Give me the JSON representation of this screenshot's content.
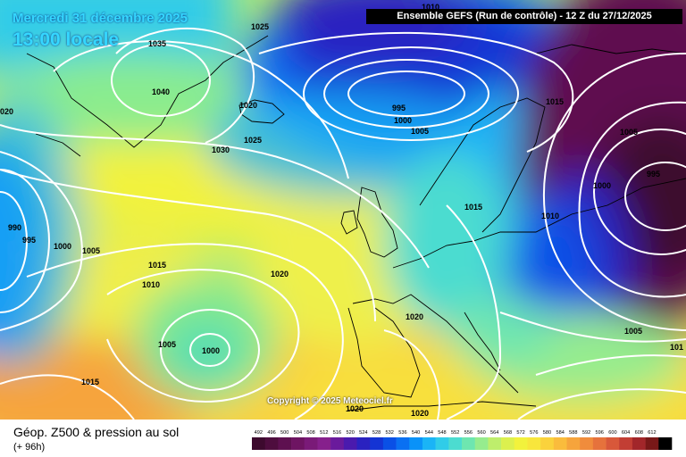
{
  "title": {
    "date": "Mercredi 31 décembre 2025",
    "time": "13:00 locale"
  },
  "run_banner": "Ensemble GEFS  (Run de contrôle)  -  12 Z du 27/12/2025",
  "copyright": "Copyright © 2025 Meteociel.fr",
  "footer": {
    "title": "Géop. Z500 & pression au sol",
    "subtitle": "(+ 96h)"
  },
  "colors": {
    "isobar": "#ffffff",
    "title_text": "#35d7ff",
    "coastline": "#000000"
  },
  "legend": {
    "ticks": [
      "492",
      "496",
      "500",
      "504",
      "508",
      "512",
      "516",
      "520",
      "524",
      "528",
      "532",
      "536",
      "540",
      "544",
      "548",
      "552",
      "556",
      "560",
      "564",
      "568",
      "572",
      "576",
      "580",
      "584",
      "588",
      "592",
      "596",
      "600",
      "604",
      "608",
      "612"
    ],
    "colors": [
      "#3d0a2e",
      "#4e0d3e",
      "#5e1050",
      "#6e1462",
      "#7a1a78",
      "#86208c",
      "#6a1a9c",
      "#4a1aae",
      "#2a22c0",
      "#1434d4",
      "#0a50e6",
      "#0a70f2",
      "#0a92f8",
      "#1ab4f6",
      "#30cce8",
      "#4cdcd0",
      "#6ee6b0",
      "#96ec8e",
      "#beee6c",
      "#dcf04e",
      "#f2f23c",
      "#f8e63c",
      "#fad23c",
      "#fabc3c",
      "#f6a43c",
      "#f08c3c",
      "#e6723c",
      "#d8583a",
      "#c23e34",
      "#a2262a",
      "#781818",
      "#000000"
    ]
  },
  "isobar_labels": [
    {
      "id": "1035",
      "text": "1035"
    },
    {
      "id": "1025a",
      "text": "1025"
    },
    {
      "id": "1010a",
      "text": "1010"
    },
    {
      "id": "1040",
      "text": "1040"
    },
    {
      "id": "1020a",
      "text": "1020"
    },
    {
      "id": "1030",
      "text": "1030"
    },
    {
      "id": "1025b",
      "text": "1025"
    },
    {
      "id": "995a",
      "text": "995"
    },
    {
      "id": "1000a",
      "text": "1000"
    },
    {
      "id": "1005a",
      "text": "1005"
    },
    {
      "id": "1015a",
      "text": "1015"
    },
    {
      "id": "1005b",
      "text": "1005"
    },
    {
      "id": "995b",
      "text": "995"
    },
    {
      "id": "1000b",
      "text": "1000"
    },
    {
      "id": "1010b",
      "text": "1010"
    },
    {
      "id": "1015b",
      "text": "1015"
    },
    {
      "id": "1020b",
      "text": "020"
    },
    {
      "id": "990",
      "text": "990"
    },
    {
      "id": "995c",
      "text": "995"
    },
    {
      "id": "1000c",
      "text": "1000"
    },
    {
      "id": "1005c",
      "text": "1005"
    },
    {
      "id": "1015c",
      "text": "1015"
    },
    {
      "id": "1010c",
      "text": "1010"
    },
    {
      "id": "1020c",
      "text": "1020"
    },
    {
      "id": "1005d",
      "text": "1005"
    },
    {
      "id": "1000d",
      "text": "1000"
    },
    {
      "id": "1020d",
      "text": "1020"
    },
    {
      "id": "1015d",
      "text": "1015"
    },
    {
      "id": "1020e",
      "text": "1020"
    },
    {
      "id": "1020f",
      "text": "1020"
    },
    {
      "id": "1005e",
      "text": "1005"
    },
    {
      "id": "101",
      "text": "101"
    },
    {
      "id": "1010d",
      "text": "1010"
    }
  ]
}
